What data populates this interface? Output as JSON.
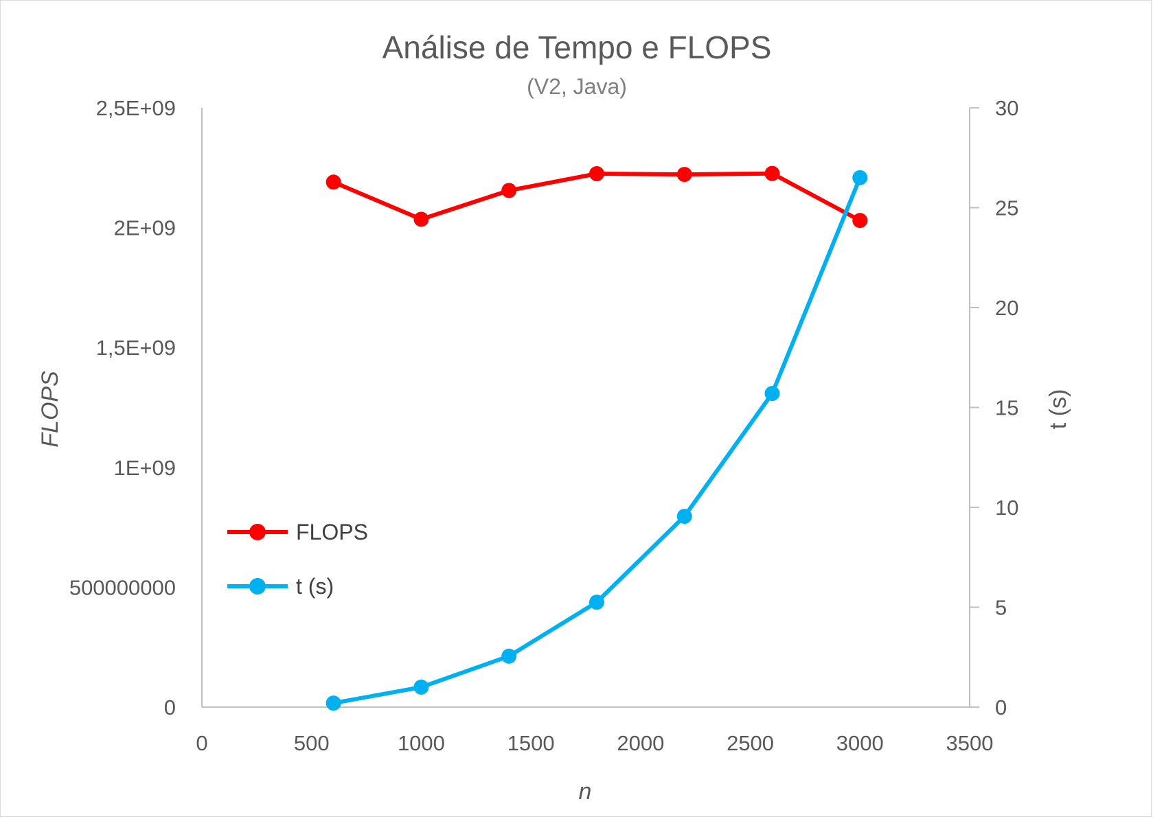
{
  "chart_data": {
    "type": "line",
    "title": "Análise de Tempo e FLOPS",
    "subtitle": "(V2, Java)",
    "xlabel": "n",
    "ylabel_left": "FLOPS",
    "ylabel_right": "t (s)",
    "xlim": [
      0,
      3500
    ],
    "x_ticks": [
      "0",
      "500",
      "1000",
      "1500",
      "2000",
      "2500",
      "3000",
      "3500"
    ],
    "ylim_left": [
      0,
      2500000000
    ],
    "y_left_ticks": [
      "0",
      "500000000",
      "1E+09",
      "1,5E+09",
      "2E+09",
      "2,5E+09"
    ],
    "ylim_right": [
      0,
      30
    ],
    "y_right_ticks": [
      "0",
      "5",
      "10",
      "15",
      "20",
      "25",
      "30"
    ],
    "grid": false,
    "legend_position": "left-middle",
    "series": [
      {
        "name": "FLOPS",
        "axis": "left",
        "color": "#ff0000",
        "x": [
          600,
          1000,
          1400,
          1800,
          2200,
          2600,
          3000
        ],
        "y": [
          2190000000,
          2035000000,
          2155000000,
          2225000000,
          2222000000,
          2226000000,
          2030000000
        ]
      },
      {
        "name": "t (s)",
        "axis": "right",
        "color": "#00b0f0",
        "x": [
          600,
          1000,
          1400,
          1800,
          2200,
          2600,
          3000
        ],
        "y": [
          0.2,
          1.0,
          2.55,
          5.25,
          9.55,
          15.7,
          26.5
        ]
      }
    ]
  }
}
